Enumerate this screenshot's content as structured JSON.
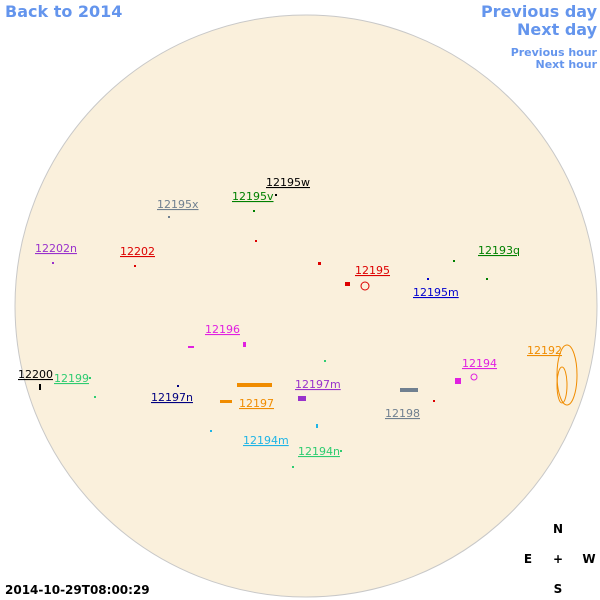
{
  "nav": {
    "back": "Back to 2014",
    "previous_day": "Previous day",
    "next_day": "Next day",
    "previous_hour": "Previous hour",
    "next_hour": "Next hour"
  },
  "regions": [
    {
      "label": "12195w",
      "color": "#000000"
    },
    {
      "label": "12195v",
      "color": "#008000"
    },
    {
      "label": "12195x",
      "color": "#708090"
    },
    {
      "label": "12202n",
      "color": "#9932cc"
    },
    {
      "label": "12202",
      "color": "#dd0000"
    },
    {
      "label": "12195",
      "color": "#dd0000"
    },
    {
      "label": "12193q",
      "color": "#008000"
    },
    {
      "label": "12195m",
      "color": "#0000cd"
    },
    {
      "label": "12196",
      "color": "#e020e0"
    },
    {
      "label": "12192",
      "color": "#f08c00"
    },
    {
      "label": "12194",
      "color": "#e020e0"
    },
    {
      "label": "12200",
      "color": "#000000"
    },
    {
      "label": "12199",
      "color": "#2ecc71"
    },
    {
      "label": "12197m",
      "color": "#9932cc"
    },
    {
      "label": "12197n",
      "color": "#000080"
    },
    {
      "label": "12197",
      "color": "#f08c00"
    },
    {
      "label": "12198",
      "color": "#708090"
    },
    {
      "label": "12194m",
      "color": "#1eb4e6"
    },
    {
      "label": "12194n",
      "color": "#2ecc71"
    }
  ],
  "compass": {
    "north": "N",
    "east": "E",
    "center": "+",
    "west": "W",
    "south": "S"
  },
  "timestamp": "2014-10-29T08:00:29"
}
